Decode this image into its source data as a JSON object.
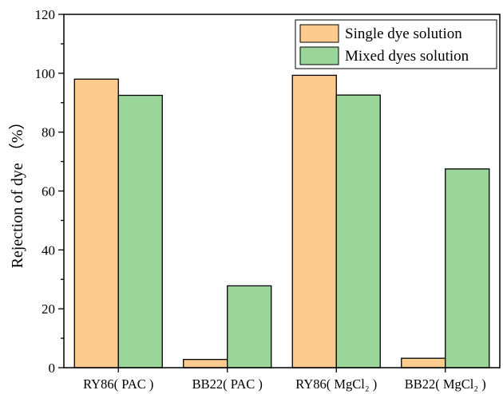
{
  "chart_data": {
    "type": "bar",
    "title": "",
    "xlabel": "",
    "ylabel": "Rejection of dye （%）",
    "ylim": [
      0,
      120
    ],
    "yticks": [
      "0",
      "20",
      "40",
      "60",
      "80",
      "100",
      "120"
    ],
    "grid": false,
    "legend_position": "top-right",
    "categories": [
      "RY86( PAC )",
      "BB22( PAC )",
      "RY86( MgCl₂ )",
      "BB22( MgCl₂ )"
    ],
    "series": [
      {
        "name": "Single dye solution",
        "color": "#fdcb8e",
        "values": [
          98.0,
          2.8,
          99.3,
          3.2
        ]
      },
      {
        "name": "Mixed dyes solution",
        "color": "#9ad69a",
        "values": [
          92.5,
          27.8,
          92.6,
          67.5
        ]
      }
    ]
  }
}
